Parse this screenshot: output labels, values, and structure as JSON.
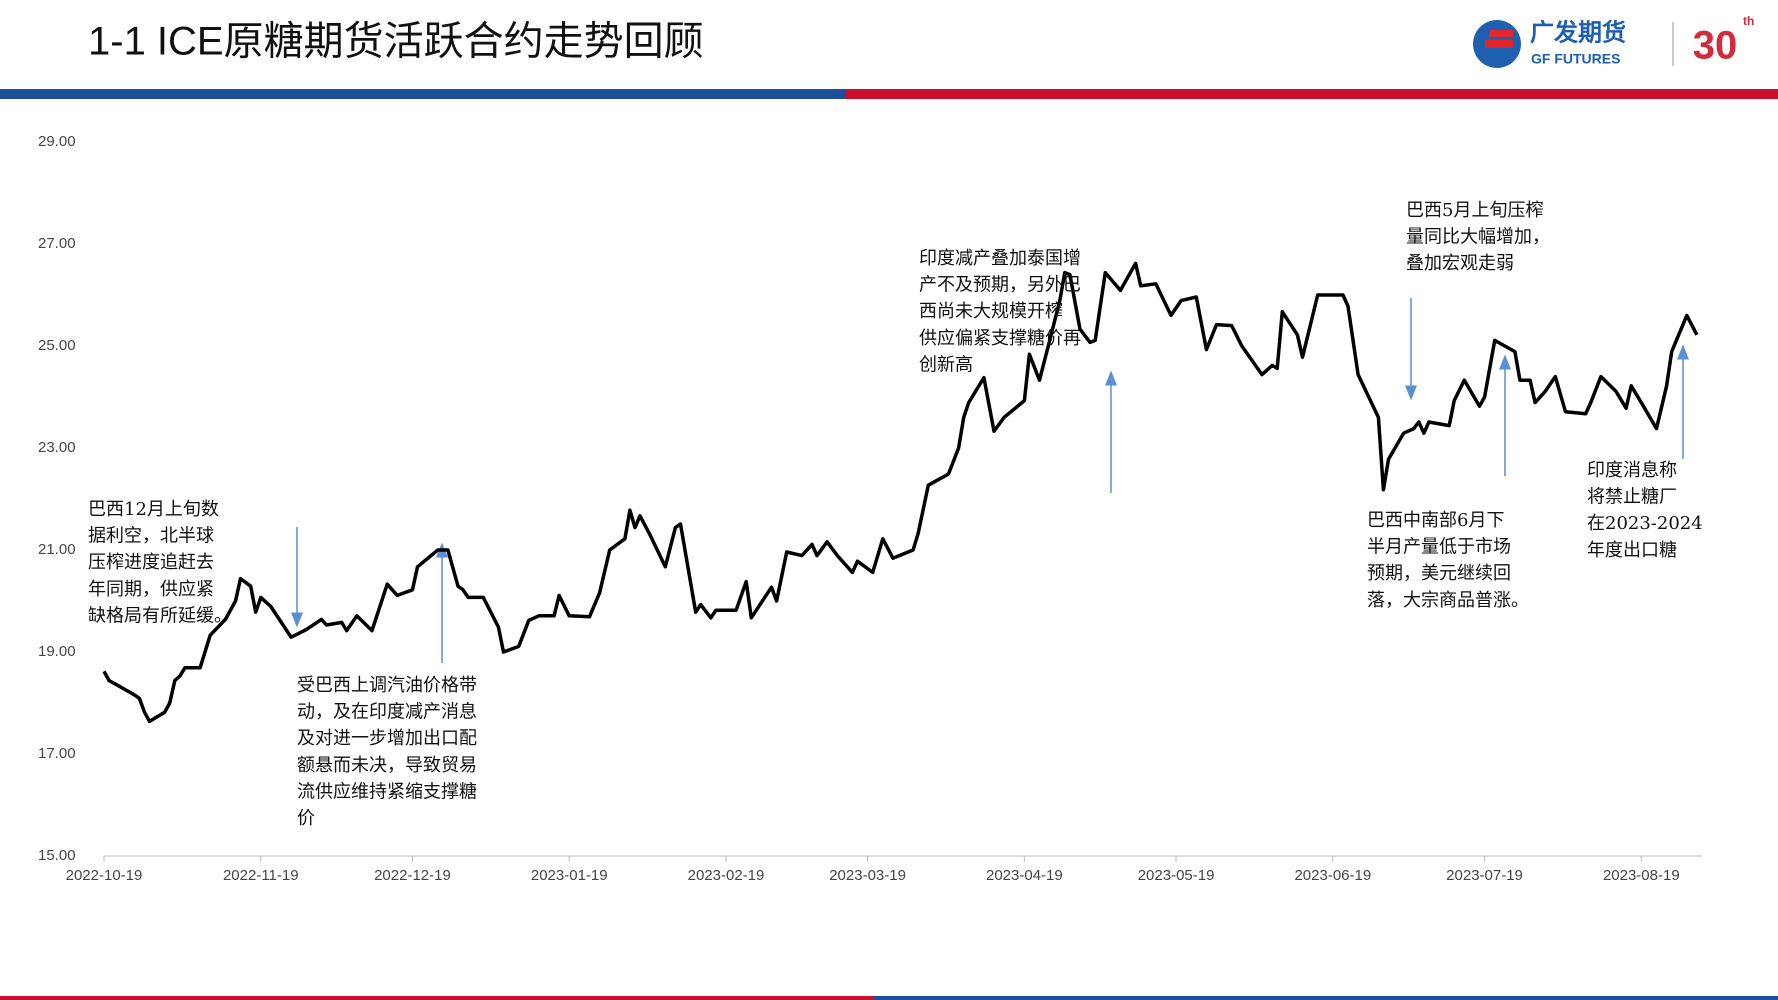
{
  "header": {
    "title": "1-1 ICE原糖期货活跃合约走势回顾",
    "logo_name": "广发期货",
    "logo_english": "GF FUTURES",
    "badge": "30",
    "badge_suffix": "th"
  },
  "chart_data": {
    "type": "line",
    "x": [
      "2022-10-19",
      "2022-10-20",
      "2022-10-22",
      "2022-10-25",
      "2022-10-26",
      "2022-10-27",
      "2022-10-28",
      "2022-10-31",
      "2022-11-01",
      "2022-11-02",
      "2022-11-03",
      "2022-11-04",
      "2022-11-07",
      "2022-11-09",
      "2022-11-12",
      "2022-11-14",
      "2022-11-15",
      "2022-11-17",
      "2022-11-18",
      "2022-11-19",
      "2022-11-21",
      "2022-11-25",
      "2022-11-28",
      "2022-12-01",
      "2022-12-02",
      "2022-12-05",
      "2022-12-06",
      "2022-12-08",
      "2022-12-11",
      "2022-12-14",
      "2022-12-16",
      "2022-12-19",
      "2022-12-20",
      "2022-12-24",
      "2022-12-26",
      "2022-12-28",
      "2022-12-29",
      "2022-12-30",
      "2023-01-02",
      "2023-01-05",
      "2023-01-06",
      "2023-01-09",
      "2023-01-11",
      "2023-01-13",
      "2023-01-16",
      "2023-01-17",
      "2023-01-19",
      "2023-01-23",
      "2023-01-25",
      "2023-01-27",
      "2023-01-30",
      "2023-01-31",
      "2023-02-01",
      "2023-02-02",
      "2023-02-04",
      "2023-02-07",
      "2023-02-09",
      "2023-02-10",
      "2023-02-13",
      "2023-02-14",
      "2023-02-16",
      "2023-02-17",
      "2023-02-21",
      "2023-02-23",
      "2023-02-24",
      "2023-02-28",
      "2023-03-01",
      "2023-03-03",
      "2023-03-06",
      "2023-03-08",
      "2023-03-09",
      "2023-03-11",
      "2023-03-13",
      "2023-03-16",
      "2023-03-17",
      "2023-03-20",
      "2023-03-22",
      "2023-03-24",
      "2023-03-28",
      "2023-03-29",
      "2023-03-31",
      "2023-04-04",
      "2023-04-06",
      "2023-04-07",
      "2023-04-08",
      "2023-04-11",
      "2023-04-13",
      "2023-04-15",
      "2023-04-19",
      "2023-04-20",
      "2023-04-22",
      "2023-04-24",
      "2023-04-26",
      "2023-04-27",
      "2023-04-28",
      "2023-04-30",
      "2023-05-02",
      "2023-05-03",
      "2023-05-05",
      "2023-05-08",
      "2023-05-11",
      "2023-05-12",
      "2023-05-15",
      "2023-05-18",
      "2023-05-20",
      "2023-05-23",
      "2023-05-25",
      "2023-05-27",
      "2023-05-30",
      "2023-06-01",
      "2023-06-05",
      "2023-06-07",
      "2023-06-08",
      "2023-06-09",
      "2023-06-12",
      "2023-06-13",
      "2023-06-16",
      "2023-06-21",
      "2023-06-22",
      "2023-06-24",
      "2023-06-28",
      "2023-06-29",
      "2023-06-30",
      "2023-07-03",
      "2023-07-05",
      "2023-07-06",
      "2023-07-07",
      "2023-07-08",
      "2023-07-12",
      "2023-07-13",
      "2023-07-15",
      "2023-07-18",
      "2023-07-19",
      "2023-07-21",
      "2023-07-25",
      "2023-07-26",
      "2023-07-28",
      "2023-07-29",
      "2023-07-31",
      "2023-08-02",
      "2023-08-04",
      "2023-08-08",
      "2023-08-09",
      "2023-08-11",
      "2023-08-14",
      "2023-08-16",
      "2023-08-17",
      "2023-08-19",
      "2023-08-22",
      "2023-08-24",
      "2023-08-25",
      "2023-08-28",
      "2023-08-30"
    ],
    "series": [
      {
        "color": "#000000",
        "values": [
          18.62,
          18.44,
          18.33,
          18.16,
          18.09,
          17.82,
          17.64,
          17.82,
          18.0,
          18.44,
          18.53,
          18.69,
          18.69,
          19.33,
          19.64,
          20.0,
          20.44,
          20.29,
          19.78,
          20.07,
          19.89,
          19.29,
          19.44,
          19.64,
          19.53,
          19.58,
          19.42,
          19.71,
          19.42,
          20.33,
          20.11,
          20.22,
          20.67,
          21.0,
          21.0,
          20.29,
          20.22,
          20.07,
          20.07,
          19.49,
          19.0,
          19.11,
          19.62,
          19.71,
          19.71,
          20.11,
          19.71,
          19.69,
          20.16,
          21.0,
          21.22,
          21.78,
          21.44,
          21.67,
          21.29,
          20.67,
          21.44,
          21.51,
          19.78,
          19.93,
          19.67,
          19.82,
          19.82,
          20.38,
          19.67,
          20.27,
          20.0,
          20.96,
          20.89,
          21.11,
          20.89,
          21.16,
          20.89,
          20.56,
          20.78,
          20.56,
          21.22,
          20.84,
          21.0,
          21.33,
          22.27,
          22.49,
          23.0,
          23.6,
          23.89,
          24.38,
          23.33,
          23.6,
          23.93,
          24.84,
          24.33,
          25.11,
          25.89,
          26.44,
          26.4,
          25.33,
          25.07,
          25.11,
          26.44,
          26.09,
          26.62,
          26.18,
          26.22,
          25.6,
          25.89,
          25.96,
          24.93,
          25.42,
          25.4,
          25.0,
          24.44,
          24.62,
          24.56,
          25.67,
          25.22,
          24.78,
          26.0,
          26.0,
          25.78,
          24.44,
          23.6,
          22.18,
          22.78,
          23.29,
          23.38,
          23.51,
          23.29,
          23.51,
          23.44,
          23.93,
          24.33,
          23.82,
          24.0,
          25.11,
          24.89,
          24.33,
          24.33,
          23.89,
          24.11,
          24.4,
          23.71,
          23.67,
          23.89,
          24.4,
          24.11,
          23.78,
          24.22,
          23.89,
          23.38,
          24.22,
          24.89,
          25.6,
          25.22
        ]
      }
    ],
    "xlim": [
      "2022-10-19",
      "2023-08-31"
    ],
    "xticks": [
      "2022-10-19",
      "2022-11-19",
      "2022-12-19",
      "2023-01-19",
      "2023-02-19",
      "2023-03-19",
      "2023-04-19",
      "2023-05-19",
      "2023-06-19",
      "2023-07-19",
      "2023-08-19"
    ],
    "ylim": [
      15,
      29
    ],
    "yticks": [
      {
        "value": 15,
        "label": "15.00"
      },
      {
        "value": 17,
        "label": "17.00"
      },
      {
        "value": 19,
        "label": "19.00"
      },
      {
        "value": 21,
        "label": "21.00"
      },
      {
        "value": 23,
        "label": "23.00"
      },
      {
        "value": 25,
        "label": "25.00"
      },
      {
        "value": 27,
        "label": "27.00"
      },
      {
        "value": 29,
        "label": "29.00"
      }
    ],
    "grid": false,
    "annotations": [
      {
        "lines": [
          "巴西12月上旬数",
          "据利空，北半球",
          "压榨进度追赶去",
          "年同期，供应紧",
          "缺格局有所延缓。"
        ]
      },
      {
        "lines": [
          "受巴西上调汽油价格带",
          "动，及在印度减产消息",
          "及对进一步增加出口配",
          "额悬而未决，导致贸易",
          "流供应维持紧缩支撑糖",
          "价"
        ]
      },
      {
        "lines": [
          "印度减产叠加泰国增",
          "产不及预期，另外巴",
          "西尚未大规模开榨",
          "供应偏紧支撑糖价再",
          "创新高"
        ]
      },
      {
        "lines": [
          "巴西5月上旬压榨",
          "量同比大幅增加，",
          "叠加宏观走弱"
        ]
      },
      {
        "lines": [
          "巴西中南部6月下",
          "半月产量低于市场",
          "预期，美元继续回",
          "落，大宗商品普涨。"
        ]
      },
      {
        "lines": [
          "印度消息称",
          "将禁止糖厂",
          "在2023-2024",
          "年度出口糖"
        ]
      }
    ]
  }
}
